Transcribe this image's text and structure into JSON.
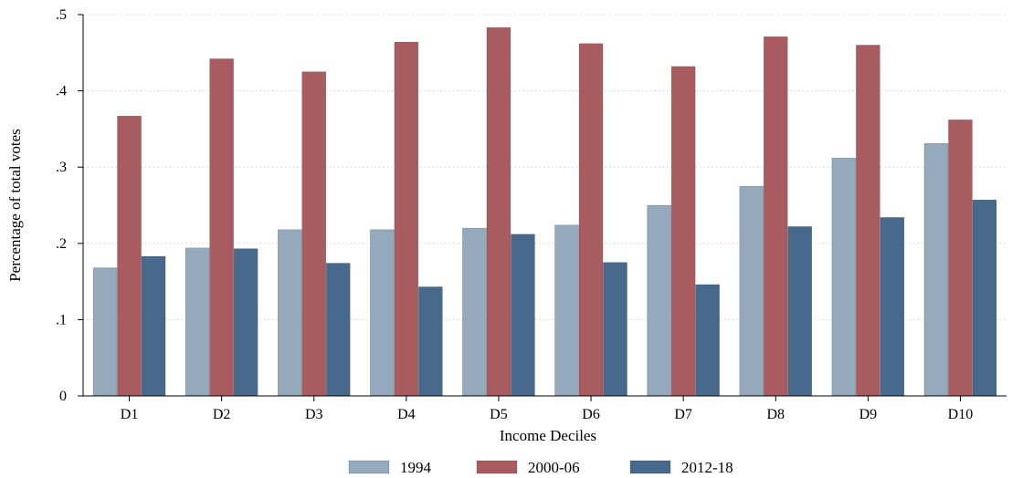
{
  "chart_data": {
    "type": "bar",
    "title": "",
    "xlabel": "Income Deciles",
    "ylabel": "Percentage of total votes",
    "categories": [
      "D1",
      "D2",
      "D3",
      "D4",
      "D5",
      "D6",
      "D7",
      "D8",
      "D9",
      "D10"
    ],
    "series": [
      {
        "name": "1994",
        "color": "#95a9bc",
        "values": [
          0.168,
          0.194,
          0.218,
          0.218,
          0.22,
          0.224,
          0.25,
          0.275,
          0.312,
          0.331
        ]
      },
      {
        "name": "2000-06",
        "color": "#a85c60",
        "values": [
          0.367,
          0.442,
          0.425,
          0.464,
          0.483,
          0.462,
          0.432,
          0.471,
          0.46,
          0.362
        ]
      },
      {
        "name": "2012-18",
        "color": "#476a8c",
        "values": [
          0.183,
          0.193,
          0.174,
          0.143,
          0.212,
          0.175,
          0.146,
          0.222,
          0.234,
          0.257
        ]
      }
    ],
    "yticks": [
      {
        "value": 0,
        "label": "0"
      },
      {
        "value": 0.1,
        "label": ".1"
      },
      {
        "value": 0.2,
        "label": ".2"
      },
      {
        "value": 0.3,
        "label": ".3"
      },
      {
        "value": 0.4,
        "label": ".4"
      },
      {
        "value": 0.5,
        "label": ".5"
      }
    ],
    "ylim": [
      0,
      0.5
    ],
    "grid": true,
    "legend_position": "bottom"
  }
}
